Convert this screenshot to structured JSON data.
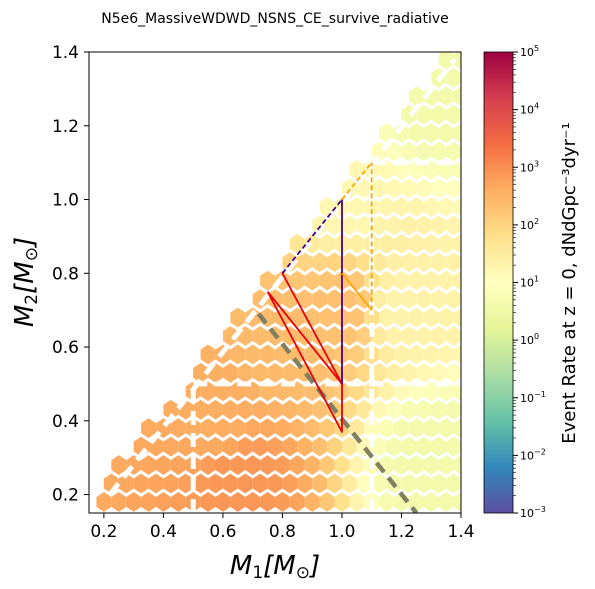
{
  "chart_data": {
    "type": "heatmap",
    "title": "N5e6_MassiveWDWD_NSNS_CE_survive_radiative",
    "xlabel": "M_1[M_⊙]",
    "ylabel": "M_2[M_⊙]",
    "xlim": [
      0.15,
      1.4
    ],
    "ylim": [
      0.15,
      1.4
    ],
    "xticks": [
      0.2,
      0.4,
      0.6,
      0.8,
      1.0,
      1.2,
      1.4
    ],
    "yticks": [
      0.2,
      0.4,
      0.6,
      0.8,
      1.0,
      1.2,
      1.4
    ],
    "x_tick_labels": [
      "0.2",
      "0.4",
      "0.6",
      "0.8",
      "1.0",
      "1.2",
      "1.4"
    ],
    "y_tick_labels": [
      "0.2",
      "0.4",
      "0.6",
      "0.8",
      "1.0",
      "1.2",
      "1.4"
    ],
    "colorbar": {
      "label": "Event Rate at z = 0, dNdGpc⁻³dyr⁻¹",
      "scale": "log",
      "range": [
        0.001,
        100000
      ],
      "colormap": "Spectral_r",
      "tick_exponents": [
        -3,
        -2,
        -1,
        0,
        1,
        2,
        3,
        4,
        5
      ]
    },
    "hexbin_log10_rate_samples": [
      {
        "m1": 0.65,
        "m2": 0.25,
        "log10_rate": 2.9
      },
      {
        "m1": 0.6,
        "m2": 0.4,
        "log10_rate": 2.6
      },
      {
        "m1": 0.8,
        "m2": 0.6,
        "log10_rate": 2.4
      },
      {
        "m1": 1.0,
        "m2": 0.7,
        "log10_rate": 2.3
      },
      {
        "m1": 1.2,
        "m2": 0.7,
        "log10_rate": 1.3
      },
      {
        "m1": 1.0,
        "m2": 1.0,
        "log10_rate": 1.2
      },
      {
        "m1": 1.3,
        "m2": 1.3,
        "log10_rate": 0.6
      },
      {
        "m1": 1.3,
        "m2": 0.3,
        "log10_rate": 0.6
      }
    ],
    "overlays": [
      {
        "style": "white-dashed",
        "x": [
          0.22,
          1.38
        ],
        "y": [
          0.2,
          1.38
        ]
      },
      {
        "style": "white-dashed",
        "x": [
          0.5,
          0.5
        ],
        "y": [
          0.15,
          0.5
        ]
      },
      {
        "style": "white-dashed",
        "x": [
          0.5,
          1.4
        ],
        "y": [
          0.5,
          0.5
        ]
      },
      {
        "style": "white-dashed",
        "x": [
          1.1,
          1.1
        ],
        "y": [
          0.15,
          1.1
        ]
      },
      {
        "style": "white-dashed",
        "x": [
          1.1,
          1.4
        ],
        "y": [
          1.1,
          1.1
        ]
      },
      {
        "style": "gray-dashed",
        "x": [
          0.72,
          1.25
        ],
        "y": [
          0.69,
          0.15
        ]
      },
      {
        "style": "red-solid",
        "x": [
          0.75,
          1.0,
          1.0,
          0.75
        ],
        "y": [
          0.75,
          0.37,
          0.5,
          0.75
        ]
      },
      {
        "style": "red-solid",
        "x": [
          0.8,
          1.0
        ],
        "y": [
          0.8,
          0.5
        ]
      },
      {
        "style": "indigo-solid",
        "x": [
          1.0,
          1.0
        ],
        "y": [
          0.5,
          1.0
        ]
      },
      {
        "style": "indigo-dashed",
        "x": [
          0.8,
          1.0
        ],
        "y": [
          0.8,
          1.0
        ]
      },
      {
        "style": "orange-solid",
        "x": [
          1.0,
          1.1
        ],
        "y": [
          0.8,
          0.7
        ]
      },
      {
        "style": "orange-dashed",
        "x": [
          1.0,
          1.1
        ],
        "y": [
          1.0,
          1.1
        ]
      },
      {
        "style": "orange-dashed",
        "x": [
          1.1,
          1.1
        ],
        "y": [
          0.7,
          1.1
        ]
      }
    ]
  }
}
